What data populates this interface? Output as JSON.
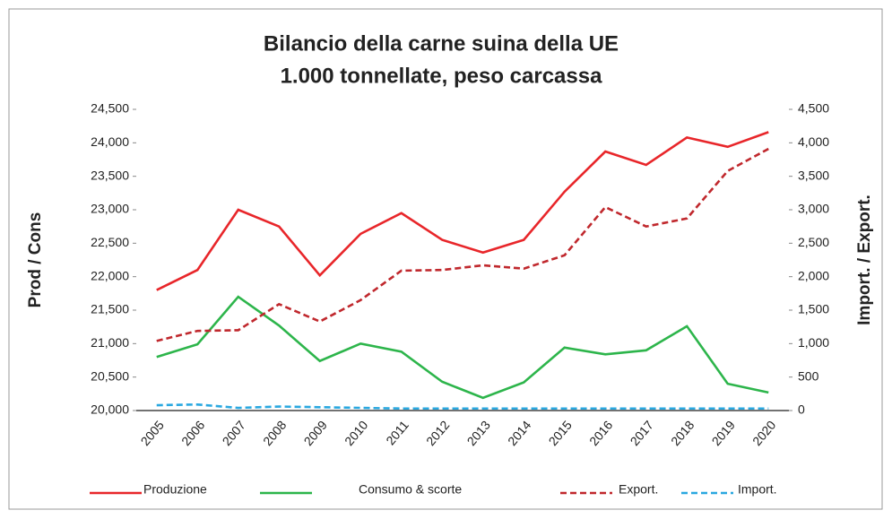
{
  "chart_data": {
    "type": "line",
    "title": "Bilancio della carne suina della UE",
    "subtitle": "1.000 tonnellate, peso carcassa",
    "ylabel": "Prod / Cons",
    "y2label": "Import. / Export.",
    "x": [
      "2005",
      "2006",
      "2007",
      "2008",
      "2009",
      "2010",
      "2011",
      "2012",
      "2013",
      "2014",
      "2015",
      "2016",
      "2017",
      "2018",
      "2019",
      "2020"
    ],
    "ylim": [
      20000,
      24500
    ],
    "yticks": [
      {
        "value": 20000,
        "label": "20,000"
      },
      {
        "value": 20500,
        "label": "20,500"
      },
      {
        "value": 21000,
        "label": "21,000"
      },
      {
        "value": 21500,
        "label": "21,500"
      },
      {
        "value": 22000,
        "label": "22,000"
      },
      {
        "value": 22500,
        "label": "22,500"
      },
      {
        "value": 23000,
        "label": "23,000"
      },
      {
        "value": 23500,
        "label": "23,500"
      },
      {
        "value": 24000,
        "label": "24,000"
      },
      {
        "value": 24500,
        "label": "24,500"
      }
    ],
    "y2lim": [
      0,
      4500
    ],
    "y2ticks": [
      0,
      500,
      {
        "value": 1000,
        "label": "1,000"
      },
      {
        "value": 1500,
        "label": "1,500"
      },
      {
        "value": 2000,
        "label": "2,000"
      },
      {
        "value": 2500,
        "label": "2,500"
      },
      {
        "value": 3000,
        "label": "3,000"
      },
      {
        "value": 3500,
        "label": "3,500"
      },
      {
        "value": 4000,
        "label": "4,000"
      },
      {
        "value": 4500,
        "label": "4,500"
      }
    ],
    "grid": false,
    "legend": "bottom",
    "series": [
      {
        "name": "Produzione",
        "color": "#e8262a",
        "line_style": "solid",
        "axis": "y",
        "values": [
          21800,
          22100,
          23000,
          22750,
          22020,
          22640,
          22950,
          22550,
          22360,
          22550,
          23270,
          23870,
          23670,
          24080,
          23940,
          24160
        ]
      },
      {
        "name": "Consumo & scorte",
        "color": "#2db54b",
        "line_style": "solid",
        "axis": "y",
        "values": [
          20800,
          20990,
          21700,
          21270,
          20740,
          21000,
          20880,
          20430,
          20190,
          20420,
          20940,
          20840,
          20900,
          21260,
          20400,
          20270
        ]
      },
      {
        "name": "Export.",
        "color": "#c0282d",
        "line_style": "dashed",
        "axis": "y2",
        "values": [
          1040,
          1190,
          1200,
          1590,
          1330,
          1650,
          2090,
          2100,
          2170,
          2120,
          2320,
          3040,
          2750,
          2870,
          3580,
          3910
        ]
      },
      {
        "name": "Import.",
        "color": "#2aa8e0",
        "line_style": "dashed",
        "axis": "y2",
        "values": [
          80,
          90,
          40,
          60,
          50,
          40,
          30,
          30,
          30,
          30,
          30,
          30,
          30,
          30,
          30,
          30
        ]
      }
    ]
  }
}
